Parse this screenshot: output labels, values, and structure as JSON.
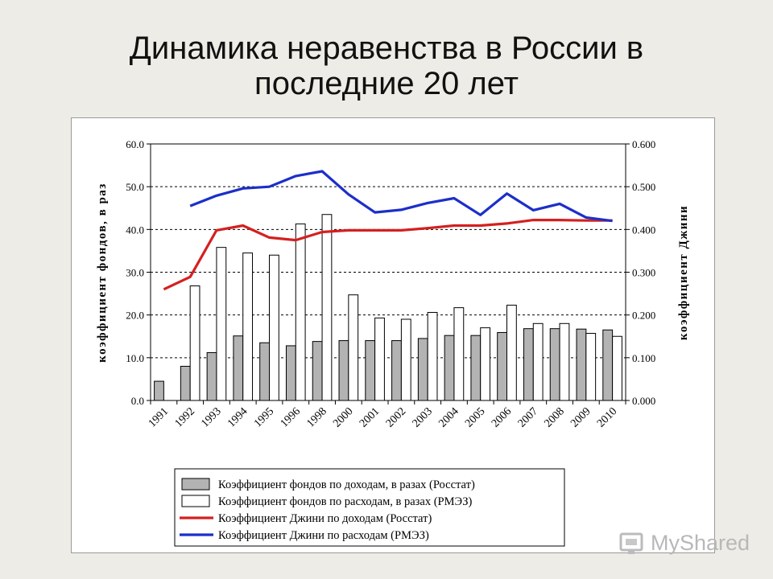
{
  "slide": {
    "title_line1": "Динамика неравенства в России в",
    "title_line2": "последние 20 лет"
  },
  "brand": {
    "name": "MyShared"
  },
  "chart_data": {
    "type": "bar",
    "categories": [
      "1991",
      "1992",
      "1993",
      "1994",
      "1995",
      "1996",
      "1998",
      "2000",
      "2001",
      "2002",
      "2003",
      "2004",
      "2005",
      "2006",
      "2007",
      "2008",
      "2009",
      "2010"
    ],
    "ylabel_left": "коэффициент фондов, в раз",
    "ylabel_right": "коэффициент Джини",
    "ylim_left": [
      0,
      60
    ],
    "ylim_right": [
      0,
      0.6
    ],
    "yticks_left": [
      "0.0",
      "10.0",
      "20.0",
      "30.0",
      "40.0",
      "50.0",
      "60.0"
    ],
    "yticks_right": [
      "0.000",
      "0.100",
      "0.200",
      "0.300",
      "0.400",
      "0.500",
      "0.600"
    ],
    "grid": true,
    "legend_position": "bottom",
    "series": [
      {
        "name": "Коэффициент фондов по доходам, в разах (Росстат)",
        "kind": "bar",
        "axis": "left",
        "color": "#b3b3b3",
        "values": [
          4.5,
          8.0,
          11.2,
          15.1,
          13.5,
          12.8,
          13.8,
          14.0,
          14.0,
          14.0,
          14.5,
          15.2,
          15.2,
          15.9,
          16.8,
          16.8,
          16.7,
          16.5
        ]
      },
      {
        "name": "Коэффициент фондов по расходам, в разах (РМЭЗ)",
        "kind": "bar",
        "axis": "left",
        "color": "#ffffff",
        "values": [
          null,
          26.8,
          35.8,
          34.5,
          34.0,
          41.3,
          43.5,
          24.7,
          19.3,
          19.0,
          20.6,
          21.7,
          17.0,
          22.3,
          18.0,
          18.0,
          15.7,
          15.0
        ]
      },
      {
        "name": "Коэффициент Джини по доходам (Росстат)",
        "kind": "line",
        "axis": "right",
        "color": "#d42020",
        "values": [
          0.26,
          0.289,
          0.398,
          0.409,
          0.381,
          0.375,
          0.394,
          0.398,
          0.398,
          0.398,
          0.403,
          0.409,
          0.409,
          0.414,
          0.422,
          0.422,
          0.421,
          0.421
        ]
      },
      {
        "name": "Коэффициент Джини по расходам (РМЭЗ)",
        "kind": "line",
        "axis": "right",
        "color": "#1c2fc9",
        "values": [
          null,
          0.455,
          0.479,
          0.496,
          0.5,
          0.525,
          0.536,
          0.482,
          0.44,
          0.446,
          0.462,
          0.473,
          0.434,
          0.484,
          0.445,
          0.46,
          0.428,
          0.42
        ]
      }
    ]
  }
}
